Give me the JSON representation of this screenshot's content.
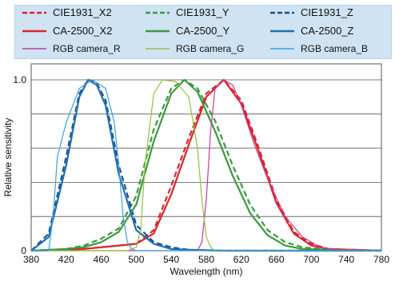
{
  "chart_data": {
    "type": "line",
    "xlabel": "Wavelength (nm)",
    "ylabel": "Relative sensitivity",
    "xlim": [
      380,
      780
    ],
    "ylim": [
      0,
      1.0
    ],
    "x_ticks": [
      "380",
      "420",
      "460",
      "500",
      "540",
      "580",
      "620",
      "660",
      "700",
      "740",
      "780"
    ],
    "y_ticks": [
      "0",
      "1.0"
    ],
    "grid": "horizontal",
    "legend_placement": "top",
    "series": [
      {
        "name": "CIE1931_X2",
        "color": "#d9262c",
        "style": "dashed",
        "x": [
          380,
          420,
          440,
          460,
          480,
          500,
          520,
          540,
          560,
          580,
          600,
          620,
          640,
          660,
          680,
          700,
          720,
          780
        ],
        "y": [
          0,
          0.005,
          0.01,
          0.02,
          0.03,
          0.04,
          0.12,
          0.38,
          0.66,
          0.92,
          1.0,
          0.88,
          0.6,
          0.3,
          0.11,
          0.04,
          0.01,
          0
        ]
      },
      {
        "name": "CIE1931_Y",
        "color": "#3a9a3e",
        "style": "dashed",
        "x": [
          380,
          420,
          440,
          460,
          480,
          500,
          520,
          540,
          555,
          570,
          590,
          610,
          630,
          650,
          670,
          690,
          720,
          780
        ],
        "y": [
          0,
          0.01,
          0.03,
          0.07,
          0.13,
          0.32,
          0.71,
          0.95,
          1.0,
          0.95,
          0.76,
          0.5,
          0.27,
          0.12,
          0.05,
          0.02,
          0.005,
          0
        ]
      },
      {
        "name": "CIE1931_Z",
        "color": "#1d4f8c",
        "style": "dashed",
        "x": [
          380,
          400,
          420,
          435,
          445,
          455,
          465,
          480,
          500,
          520,
          540,
          560,
          600,
          780
        ],
        "y": [
          0,
          0.1,
          0.55,
          0.92,
          1.0,
          0.98,
          0.88,
          0.5,
          0.15,
          0.05,
          0.02,
          0.005,
          0,
          0
        ]
      },
      {
        "name": "CA-2500_X2",
        "color": "#d9262c",
        "style": "solid",
        "x": [
          380,
          420,
          440,
          460,
          480,
          500,
          520,
          540,
          560,
          580,
          600,
          620,
          640,
          660,
          680,
          700,
          720,
          780
        ],
        "y": [
          0,
          0.005,
          0.01,
          0.02,
          0.03,
          0.04,
          0.1,
          0.33,
          0.62,
          0.9,
          1.0,
          0.86,
          0.58,
          0.28,
          0.1,
          0.03,
          0.01,
          0
        ]
      },
      {
        "name": "CA-2500_Y",
        "color": "#3a9a3e",
        "style": "solid",
        "x": [
          380,
          420,
          440,
          460,
          480,
          500,
          520,
          540,
          555,
          570,
          590,
          610,
          630,
          650,
          670,
          690,
          720,
          780
        ],
        "y": [
          0,
          0.01,
          0.02,
          0.05,
          0.11,
          0.27,
          0.64,
          0.92,
          1.0,
          0.93,
          0.7,
          0.44,
          0.22,
          0.09,
          0.03,
          0.01,
          0.005,
          0
        ]
      },
      {
        "name": "CA-2500_Z",
        "color": "#1f6fb4",
        "style": "solid",
        "x": [
          380,
          400,
          420,
          435,
          445,
          455,
          465,
          480,
          500,
          520,
          540,
          560,
          600,
          780
        ],
        "y": [
          0,
          0.08,
          0.5,
          0.9,
          1.0,
          0.97,
          0.85,
          0.45,
          0.12,
          0.04,
          0.01,
          0.005,
          0,
          0
        ]
      },
      {
        "name": "RGB camera_R",
        "color": "#c43a9a",
        "style": "solid",
        "x": [
          380,
          560,
          570,
          575,
          580,
          585,
          590,
          600,
          610,
          620,
          635,
          650,
          670,
          690,
          710,
          730,
          780
        ],
        "y": [
          0,
          0,
          0.0,
          0.05,
          0.3,
          0.7,
          0.95,
          1.0,
          0.97,
          0.85,
          0.62,
          0.42,
          0.2,
          0.08,
          0.02,
          0.005,
          0
        ]
      },
      {
        "name": "RGB camera_G",
        "color": "#8fc43a",
        "style": "solid",
        "x": [
          380,
          490,
          500,
          505,
          510,
          520,
          530,
          545,
          560,
          570,
          575,
          580,
          585,
          590,
          780
        ],
        "y": [
          0,
          0,
          0.02,
          0.12,
          0.5,
          0.92,
          1.0,
          0.99,
          0.9,
          0.6,
          0.3,
          0.08,
          0.02,
          0,
          0
        ]
      },
      {
        "name": "RGB camera_B",
        "color": "#3aa0dc",
        "style": "solid",
        "x": [
          380,
          400,
          405,
          410,
          420,
          435,
          450,
          465,
          475,
          480,
          485,
          490,
          495,
          500,
          780
        ],
        "y": [
          0,
          0,
          0.2,
          0.55,
          0.75,
          0.95,
          1.0,
          0.95,
          0.75,
          0.5,
          0.2,
          0.05,
          0.01,
          0,
          0
        ]
      }
    ]
  },
  "legend": {
    "row1": [
      "CIE1931_X2",
      "CIE1931_Y",
      "CIE1931_Z"
    ],
    "row2": [
      "CA-2500_X2",
      "CA-2500_Y",
      "CA-2500_Z"
    ],
    "row3": [
      "RGB camera_R",
      "RGB camera_G",
      "RGB camera_B"
    ]
  }
}
